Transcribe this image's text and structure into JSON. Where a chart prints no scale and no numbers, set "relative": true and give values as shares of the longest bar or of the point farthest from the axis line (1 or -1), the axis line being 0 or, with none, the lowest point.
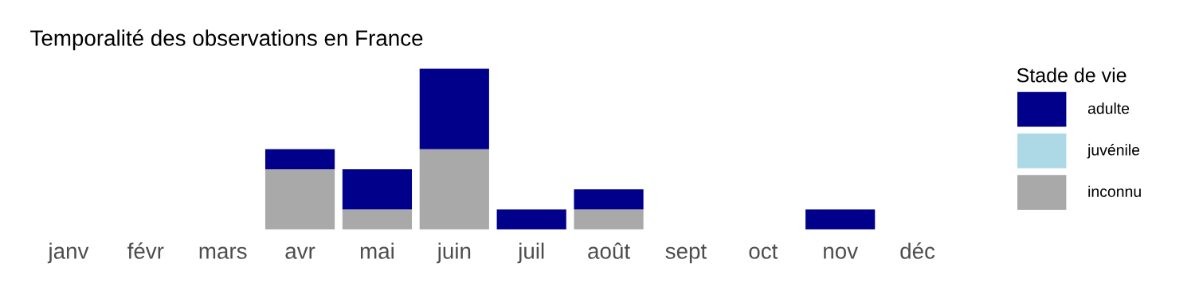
{
  "chart_data": {
    "type": "bar",
    "title": "Temporalité des observations en France",
    "categories": [
      "janv",
      "févr",
      "mars",
      "avr",
      "mai",
      "juin",
      "juil",
      "août",
      "sept",
      "oct",
      "nov",
      "déc"
    ],
    "stacked": true,
    "relative": true,
    "legend_title": "Stade de vie",
    "legend": "right",
    "grid": false,
    "series": [
      {
        "name": "inconnu",
        "color": "#a9a9a9",
        "values": [
          0,
          0,
          0,
          0.375,
          0.125,
          0.5,
          0,
          0.125,
          0,
          0,
          0,
          0
        ]
      },
      {
        "name": "juvénile",
        "color": "#add8e6",
        "values": [
          0,
          0,
          0,
          0,
          0,
          0,
          0,
          0,
          0,
          0,
          0,
          0
        ]
      },
      {
        "name": "adulte",
        "color": "#00008b",
        "values": [
          0,
          0,
          0,
          0.125,
          0.25,
          0.5,
          0.125,
          0.125,
          0,
          0,
          0.125,
          0
        ]
      }
    ]
  }
}
